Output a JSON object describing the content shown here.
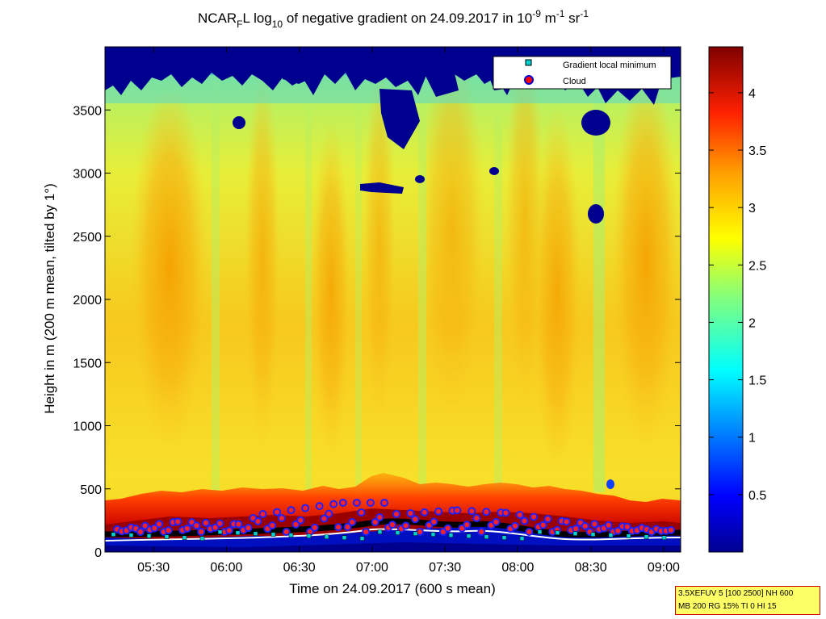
{
  "chart_data": {
    "type": "heatmap",
    "title": {
      "main": "NCAR",
      "main_sub": "F",
      "part2": "L log",
      "part2_sub": "10",
      "part3": " of negative gradient on 24.09.2017 in 10",
      "part3_sup": "-9",
      "part4": " m",
      "part4_sup": "-1",
      "part5": " sr",
      "part5_sup": "-1"
    },
    "xlabel": "Time on 24.09.2017 (600 s mean)",
    "ylabel": "Height in m (200 m mean, tilted by 1°)",
    "x_range": [
      "05:10",
      "09:07"
    ],
    "x_ticks": [
      "05:30",
      "06:00",
      "06:30",
      "07:00",
      "07:30",
      "08:00",
      "08:30",
      "09:00"
    ],
    "ylim": [
      0,
      4000
    ],
    "y_ticks": [
      0,
      500,
      1000,
      1500,
      2000,
      2500,
      3000,
      3500
    ],
    "colorbar": {
      "range": [
        0,
        4.4
      ],
      "ticks": [
        "0.5",
        "1",
        "1.5",
        "2",
        "2.5",
        "3",
        "3.5",
        "4"
      ],
      "colormap": "jet"
    },
    "legend": {
      "placement": "top-right",
      "entries": [
        {
          "label": "Gradient local minimum",
          "marker": "square",
          "color": "#00cccc"
        },
        {
          "label": "Cloud",
          "marker": "circle",
          "color": "#ff0000"
        }
      ]
    },
    "cloud_height_profile_m": [
      {
        "t": "05:15",
        "h": 180
      },
      {
        "t": "05:40",
        "h": 240
      },
      {
        "t": "06:05",
        "h": 220
      },
      {
        "t": "06:15",
        "h": 300
      },
      {
        "t": "06:48",
        "h": 390
      },
      {
        "t": "07:05",
        "h": 390
      },
      {
        "t": "07:10",
        "h": 300
      },
      {
        "t": "07:35",
        "h": 330
      },
      {
        "t": "07:55",
        "h": 310
      },
      {
        "t": "08:20",
        "h": 240
      },
      {
        "t": "08:45",
        "h": 200
      },
      {
        "t": "09:05",
        "h": 170
      }
    ],
    "gradient_min_height_m": 130
  },
  "info_box": {
    "line1": "3.5XEFUV 5 [100 2500] NH 600",
    "line2": "MB 200 RG 15% TI 0 HI 15"
  },
  "colors": {
    "deep_blue": "#00008f",
    "yellow_green": "#d8f020",
    "orange": "#f5a000",
    "dark_red": "#800000"
  }
}
